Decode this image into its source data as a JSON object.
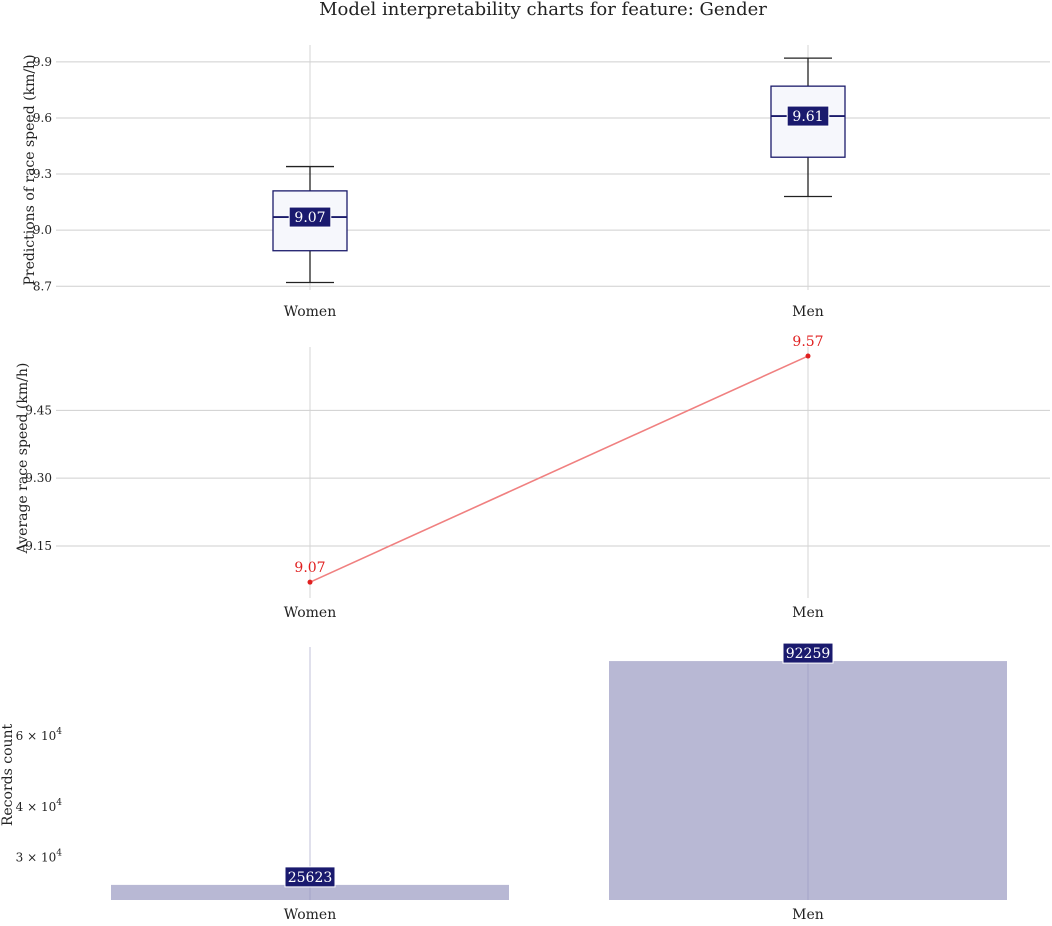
{
  "title": "Model interpretability charts for feature: Gender",
  "colors": {
    "box_fill": "#f6f7fc",
    "box_edge": "#1b1b6b",
    "whisker": "#222222",
    "label_bg": "#1a1a6e",
    "line": "#f08080",
    "line_label": "#e02020",
    "bar": "#b8b8d4",
    "grid": "#cfcfcf"
  },
  "chart_data": [
    {
      "type": "box",
      "ylabel": "Predictions of race speed (km/h)",
      "categories": [
        "Women",
        "Men"
      ],
      "yticks": [
        "8.7",
        "9.0",
        "9.3",
        "9.6",
        "9.9"
      ],
      "ylim": [
        8.68,
        9.99
      ],
      "boxes": [
        {
          "category": "Women",
          "whislo": 8.72,
          "q1": 8.89,
          "med": 9.07,
          "q3": 9.21,
          "whishi": 9.34,
          "label": "9.07"
        },
        {
          "category": "Men",
          "whislo": 9.18,
          "q1": 9.39,
          "med": 9.61,
          "q3": 9.77,
          "whishi": 9.92,
          "label": "9.61"
        }
      ]
    },
    {
      "type": "line",
      "ylabel": "Average race speed (km/h)",
      "categories": [
        "Women",
        "Men"
      ],
      "yticks": [
        "9.15",
        "9.30",
        "9.45"
      ],
      "ylim": [
        9.035,
        9.59
      ],
      "values": [
        9.07,
        9.57
      ],
      "labels": [
        "9.07",
        "9.57"
      ]
    },
    {
      "type": "bar",
      "ylabel": "Records count",
      "categories": [
        "Women",
        "Men"
      ],
      "yscale": "log",
      "yticks": [
        {
          "base": "3 × 10",
          "exp": "4",
          "value": 30000
        },
        {
          "base": "4 × 10",
          "exp": "4",
          "value": 40000
        },
        {
          "base": "6 × 10",
          "exp": "4",
          "value": 60000
        }
      ],
      "ylim": [
        23500,
        100000
      ],
      "values": [
        25623,
        92259
      ],
      "labels": [
        "25623",
        "92259"
      ]
    }
  ]
}
